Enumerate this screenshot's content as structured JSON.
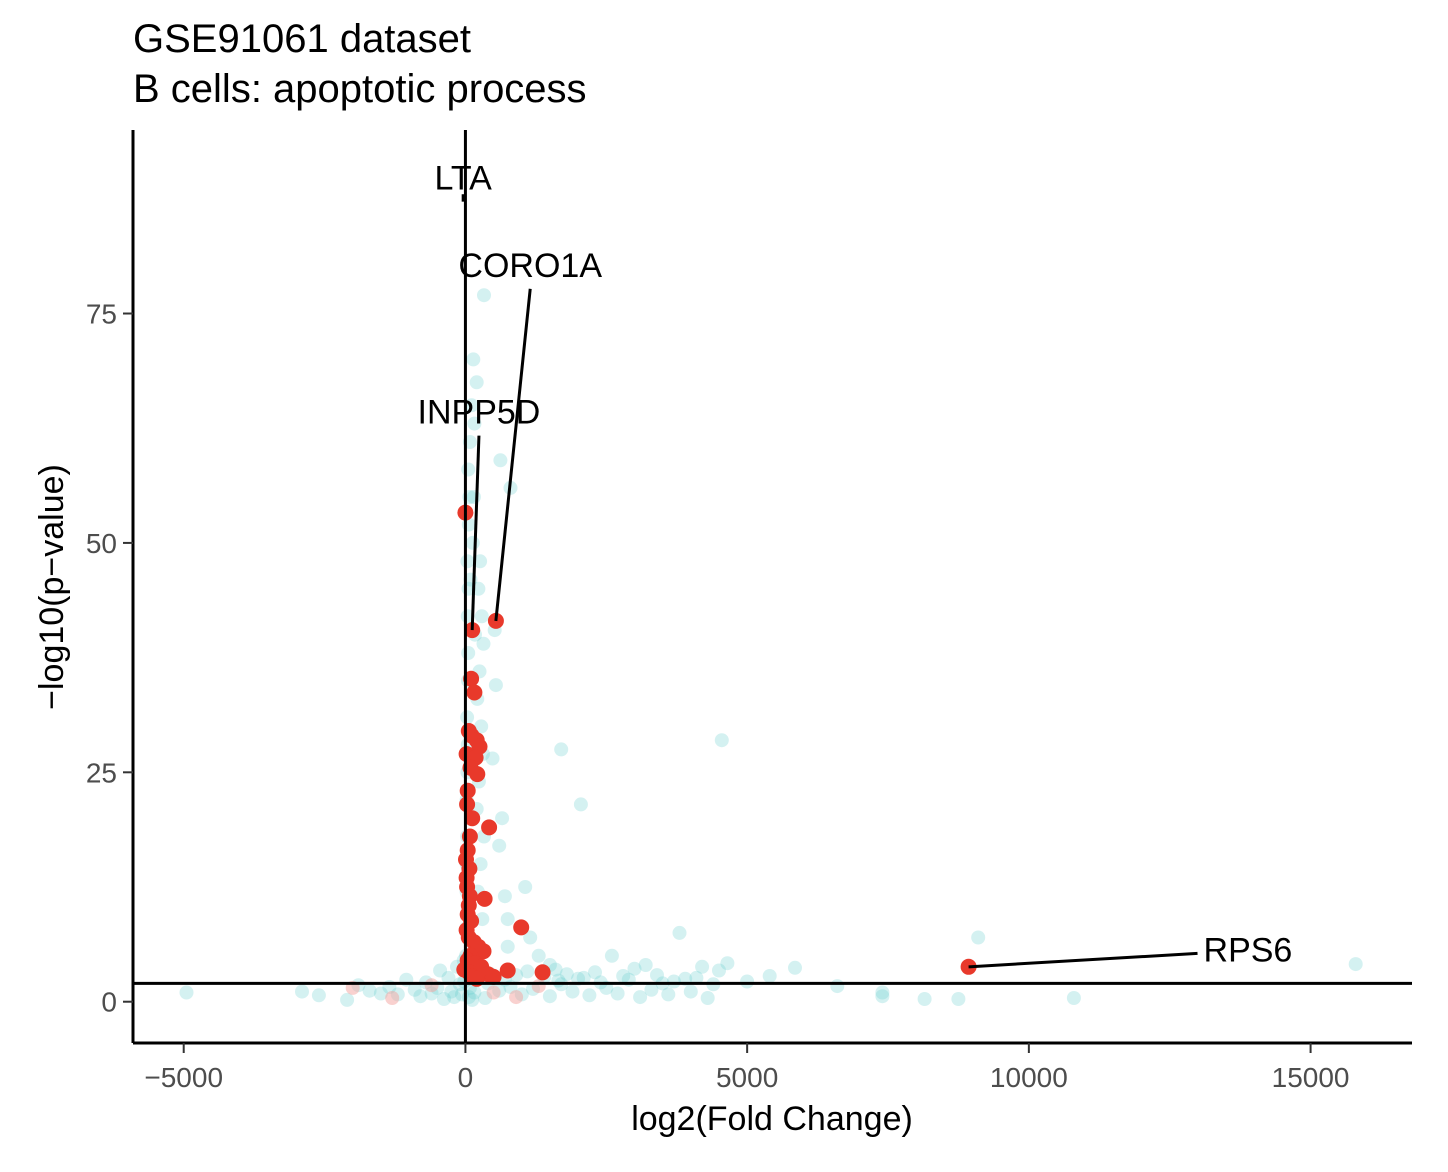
{
  "chart_data": {
    "type": "scatter",
    "title": "GSE91061 dataset",
    "subtitle": "B cells: apoptotic process",
    "xlabel": "log2(Fold Change)",
    "ylabel": "−log10(p−value)",
    "xlim": [
      -5900,
      16800
    ],
    "ylim": [
      -4.5,
      95
    ],
    "x_ticks": [
      {
        "value": -5000,
        "label": "−5000"
      },
      {
        "value": 0,
        "label": "0"
      },
      {
        "value": 5000,
        "label": "5000"
      },
      {
        "value": 10000,
        "label": "10000"
      },
      {
        "value": 15000,
        "label": "15000"
      }
    ],
    "y_ticks": [
      {
        "value": 0,
        "label": "0"
      },
      {
        "value": 25,
        "label": "25"
      },
      {
        "value": 50,
        "label": "50"
      },
      {
        "value": 75,
        "label": "75"
      }
    ],
    "reference_lines": {
      "vertical_x": 0,
      "horizontal_y": 2
    },
    "colors": {
      "background_genes": "#66cccc",
      "pathway_genes": "#e8392b",
      "faint_red": "#f4a3a0"
    },
    "series": [
      {
        "values": [
          {
            "x": -4950,
            "y": 1.0
          },
          {
            "x": -2900,
            "y": 1.1
          },
          {
            "x": -2600,
            "y": 0.7
          },
          {
            "x": -2100,
            "y": 0.2
          },
          {
            "x": -1900,
            "y": 1.8
          },
          {
            "x": -1700,
            "y": 1.2
          },
          {
            "x": -1500,
            "y": 0.9
          },
          {
            "x": -1350,
            "y": 1.6
          },
          {
            "x": -1200,
            "y": 0.8
          },
          {
            "x": -1050,
            "y": 2.4
          },
          {
            "x": -900,
            "y": 1.3
          },
          {
            "x": -800,
            "y": 0.6
          },
          {
            "x": -700,
            "y": 2.1
          },
          {
            "x": -600,
            "y": 0.9
          },
          {
            "x": -500,
            "y": 1.5
          },
          {
            "x": -450,
            "y": 3.4
          },
          {
            "x": -380,
            "y": 0.3
          },
          {
            "x": -300,
            "y": 2.6
          },
          {
            "x": -250,
            "y": 1.1
          },
          {
            "x": -200,
            "y": 0.5
          },
          {
            "x": -150,
            "y": 3.8
          },
          {
            "x": -100,
            "y": 1.9
          },
          {
            "x": -60,
            "y": 0.8
          },
          {
            "x": -30,
            "y": 4.5
          },
          {
            "x": -20,
            "y": 2.2
          },
          {
            "x": 10,
            "y": 5
          },
          {
            "x": 15,
            "y": 8
          },
          {
            "x": 20,
            "y": 12
          },
          {
            "x": 25,
            "y": 15
          },
          {
            "x": 30,
            "y": 18
          },
          {
            "x": 20,
            "y": 22
          },
          {
            "x": 35,
            "y": 25
          },
          {
            "x": 40,
            "y": 28
          },
          {
            "x": 30,
            "y": 31
          },
          {
            "x": 45,
            "y": 35
          },
          {
            "x": 50,
            "y": 38
          },
          {
            "x": 40,
            "y": 42
          },
          {
            "x": 55,
            "y": 45
          },
          {
            "x": 35,
            "y": 48
          },
          {
            "x": 60,
            "y": 52
          },
          {
            "x": 70,
            "y": 55
          },
          {
            "x": 50,
            "y": 58
          },
          {
            "x": 80,
            "y": 61
          },
          {
            "x": 110,
            "y": 65
          },
          {
            "x": 140,
            "y": 70
          },
          {
            "x": 200,
            "y": 67.5
          },
          {
            "x": 160,
            "y": 63
          },
          {
            "x": 260,
            "y": 48
          },
          {
            "x": 230,
            "y": 45
          },
          {
            "x": 290,
            "y": 42
          },
          {
            "x": 320,
            "y": 39
          },
          {
            "x": 250,
            "y": 36
          },
          {
            "x": 210,
            "y": 33
          },
          {
            "x": 280,
            "y": 30
          },
          {
            "x": 310,
            "y": 27
          },
          {
            "x": 240,
            "y": 24
          },
          {
            "x": 200,
            "y": 21
          },
          {
            "x": 330,
            "y": 18
          },
          {
            "x": 270,
            "y": 15
          },
          {
            "x": 220,
            "y": 12
          },
          {
            "x": 300,
            "y": 9
          },
          {
            "x": 180,
            "y": 6
          },
          {
            "x": 140,
            "y": 4
          },
          {
            "x": 100,
            "y": 2.5
          },
          {
            "x": 80,
            "y": 1.5
          },
          {
            "x": 60,
            "y": 0.5
          },
          {
            "x": 120,
            "y": 0.2
          },
          {
            "x": 160,
            "y": 1.0
          },
          {
            "x": 150,
            "y": 55
          },
          {
            "x": 130,
            "y": 50
          },
          {
            "x": 90,
            "y": 46
          },
          {
            "x": 170,
            "y": 40
          },
          {
            "x": 330,
            "y": 77
          },
          {
            "x": 620,
            "y": 59
          },
          {
            "x": 800,
            "y": 56
          },
          {
            "x": 520,
            "y": 40.5
          },
          {
            "x": 540,
            "y": 34.5
          },
          {
            "x": 480,
            "y": 26.5
          },
          {
            "x": 650,
            "y": 20
          },
          {
            "x": 600,
            "y": 17
          },
          {
            "x": 1700,
            "y": 27.5
          },
          {
            "x": 2050,
            "y": 21.5
          },
          {
            "x": 4550,
            "y": 28.5
          },
          {
            "x": 1060,
            "y": 12.5
          },
          {
            "x": 700,
            "y": 11.5
          },
          {
            "x": 750,
            "y": 9
          },
          {
            "x": 1150,
            "y": 7
          },
          {
            "x": 750,
            "y": 6
          },
          {
            "x": 1300,
            "y": 5
          },
          {
            "x": 1500,
            "y": 4
          },
          {
            "x": 1600,
            "y": 3.5
          },
          {
            "x": 1800,
            "y": 3.0
          },
          {
            "x": 2000,
            "y": 2.5
          },
          {
            "x": 2300,
            "y": 3.2
          },
          {
            "x": 2600,
            "y": 5.0
          },
          {
            "x": 2800,
            "y": 2.8
          },
          {
            "x": 3000,
            "y": 3.6
          },
          {
            "x": 3200,
            "y": 4.0
          },
          {
            "x": 3500,
            "y": 2.0
          },
          {
            "x": 3800,
            "y": 7.5
          },
          {
            "x": 3900,
            "y": 2.5
          },
          {
            "x": 4200,
            "y": 3.8
          },
          {
            "x": 4500,
            "y": 3.4
          },
          {
            "x": 4650,
            "y": 4.2
          },
          {
            "x": 4400,
            "y": 1.9
          },
          {
            "x": 5400,
            "y": 2.8
          },
          {
            "x": 5850,
            "y": 3.7
          },
          {
            "x": 6600,
            "y": 1.7
          },
          {
            "x": 7400,
            "y": 1.0
          },
          {
            "x": 7400,
            "y": 0.6
          },
          {
            "x": 8150,
            "y": 0.3
          },
          {
            "x": 8750,
            "y": 0.3
          },
          {
            "x": 9100,
            "y": 7.0
          },
          {
            "x": 10800,
            "y": 0.4
          },
          {
            "x": 15800,
            "y": 4.1
          },
          {
            "x": 400,
            "y": 2.0
          },
          {
            "x": 600,
            "y": 1.2
          },
          {
            "x": 800,
            "y": 1.6
          },
          {
            "x": 1000,
            "y": 0.8
          },
          {
            "x": 1200,
            "y": 1.4
          },
          {
            "x": 1500,
            "y": 0.6
          },
          {
            "x": 1700,
            "y": 1.9
          },
          {
            "x": 1900,
            "y": 1.1
          },
          {
            "x": 2200,
            "y": 0.7
          },
          {
            "x": 2500,
            "y": 1.5
          },
          {
            "x": 2700,
            "y": 0.9
          },
          {
            "x": 3100,
            "y": 0.5
          },
          {
            "x": 3300,
            "y": 1.3
          },
          {
            "x": 3600,
            "y": 0.8
          },
          {
            "x": 4000,
            "y": 1.1
          },
          {
            "x": 4300,
            "y": 0.4
          },
          {
            "x": 5000,
            "y": 2.2
          },
          {
            "x": 350,
            "y": 0.4
          },
          {
            "x": 450,
            "y": 3.0
          },
          {
            "x": 250,
            "y": 2.8
          },
          {
            "x": 700,
            "y": 2.4
          },
          {
            "x": 900,
            "y": 2.9
          },
          {
            "x": 1100,
            "y": 3.3
          },
          {
            "x": 1400,
            "y": 2.7
          },
          {
            "x": 1650,
            "y": 2.3
          },
          {
            "x": 2100,
            "y": 2.6
          },
          {
            "x": 2400,
            "y": 2.1
          },
          {
            "x": 2900,
            "y": 2.4
          },
          {
            "x": 3400,
            "y": 2.9
          },
          {
            "x": 3700,
            "y": 2.2
          },
          {
            "x": 4100,
            "y": 2.6
          }
        ]
      },
      {
        "values": [
          {
            "x": -2000,
            "y": 1.5
          },
          {
            "x": -1300,
            "y": 0.4
          },
          {
            "x": -600,
            "y": 1.8
          },
          {
            "x": 500,
            "y": 1.0
          },
          {
            "x": 900,
            "y": 0.5
          },
          {
            "x": 1300,
            "y": 1.7
          }
        ]
      },
      {
        "values": [
          {
            "x": 0,
            "y": 53.3
          },
          {
            "x": 540,
            "y": 41.5
          },
          {
            "x": 120,
            "y": 40.5
          },
          {
            "x": 100,
            "y": 35.2
          },
          {
            "x": 160,
            "y": 33.7
          },
          {
            "x": 60,
            "y": 29.5
          },
          {
            "x": 110,
            "y": 29.0
          },
          {
            "x": 200,
            "y": 28.5
          },
          {
            "x": 250,
            "y": 27.8
          },
          {
            "x": 20,
            "y": 27.0
          },
          {
            "x": 180,
            "y": 26.6
          },
          {
            "x": 90,
            "y": 25.5
          },
          {
            "x": 210,
            "y": 24.8
          },
          {
            "x": 40,
            "y": 23.0
          },
          {
            "x": 30,
            "y": 21.5
          },
          {
            "x": 120,
            "y": 20.0
          },
          {
            "x": 420,
            "y": 19.0
          },
          {
            "x": 80,
            "y": 18.0
          },
          {
            "x": 40,
            "y": 16.5
          },
          {
            "x": 10,
            "y": 15.5
          },
          {
            "x": 70,
            "y": 14.5
          },
          {
            "x": 20,
            "y": 13.5
          },
          {
            "x": 30,
            "y": 12.5
          },
          {
            "x": 80,
            "y": 11.5
          },
          {
            "x": 340,
            "y": 11.2
          },
          {
            "x": 60,
            "y": 10.5
          },
          {
            "x": 40,
            "y": 9.5
          },
          {
            "x": 100,
            "y": 8.8
          },
          {
            "x": 990,
            "y": 8.1
          },
          {
            "x": 20,
            "y": 7.8
          },
          {
            "x": 60,
            "y": 7.0
          },
          {
            "x": 150,
            "y": 6.5
          },
          {
            "x": 230,
            "y": 6.0
          },
          {
            "x": 320,
            "y": 5.5
          },
          {
            "x": 90,
            "y": 5.0
          },
          {
            "x": 40,
            "y": 4.5
          },
          {
            "x": 170,
            "y": 4.2
          },
          {
            "x": 280,
            "y": 3.8
          },
          {
            "x": -20,
            "y": 3.5
          },
          {
            "x": 60,
            "y": 3.2
          },
          {
            "x": 400,
            "y": 3.0
          },
          {
            "x": 750,
            "y": 3.4
          },
          {
            "x": 1370,
            "y": 3.2
          },
          {
            "x": 8930,
            "y": 3.8
          },
          {
            "x": 120,
            "y": 2.8
          },
          {
            "x": 200,
            "y": 2.5
          },
          {
            "x": 500,
            "y": 2.7
          }
        ]
      }
    ],
    "annotations": [
      {
        "label": "LTA",
        "x": -40,
        "y": 88.5,
        "point_x": -40,
        "point_y": 88
      },
      {
        "label": "CORO1A",
        "x": 1150,
        "y": 79,
        "point_x": 540,
        "point_y": 41.5
      },
      {
        "label": "INPP5D",
        "x": 240,
        "y": 63,
        "point_x": 120,
        "point_y": 40.5
      },
      {
        "label": "RPS6",
        "x": 13100,
        "y": 5.7,
        "point_x": 8930,
        "point_y": 3.8
      }
    ]
  }
}
